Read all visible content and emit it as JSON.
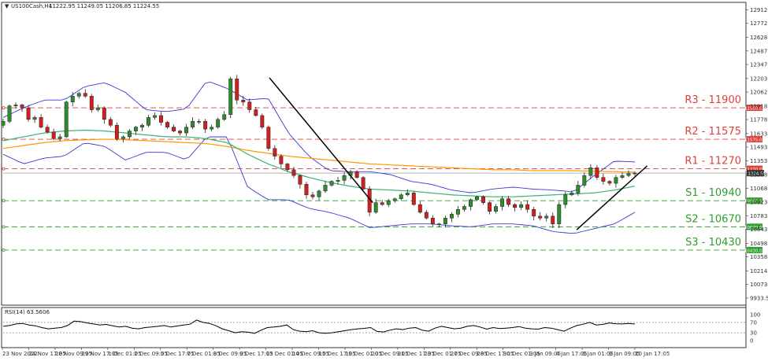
{
  "header": {
    "symbol": "US100Cash,H4",
    "ohlc": "11222.95 11249.05 11206.85 11224.55"
  },
  "rsi_header": "RSI(14) 63.5606",
  "colors": {
    "bull": "#2e8b2e",
    "bear": "#d11f1f",
    "ma_green": "#3cb371",
    "ma_orange": "#ff9900",
    "bollinger": "#3a3ad0",
    "resistance": "#e0403c",
    "support": "#2e9e2e",
    "trendline": "#000000",
    "rsi_line": "#000000"
  },
  "price_axis": {
    "ticks": [
      "12912.80",
      "12772.65",
      "12628.05",
      "12487.90",
      "12347.75",
      "12203.15",
      "12062.80",
      "11918.45",
      "11778.30",
      "11633.70",
      "11493.55",
      "11353.40",
      "11208.75",
      "11068.60",
      "10923.05",
      "10783.85",
      "10643.45",
      "10498.90",
      "10358.55",
      "10214.05",
      "10073.90",
      "9933.55"
    ],
    "current_price": "11224.55"
  },
  "time_axis": {
    "labels": [
      "23 Nov 2022",
      "24 Nov 17:05",
      "28 Nov 09:05",
      "29 Nov 17:05",
      "1 Dec 01:05",
      "2 Dec 09:05",
      "5 Dec 17:05",
      "7 Dec 01:05",
      "8 Dec 09:05",
      "9 Dec 17:05",
      "13 Dec 01:05",
      "14 Dec 09:05",
      "15 Dec 17:05",
      "19 Dec 01:05",
      "20 Dec 09:05",
      "21 Dec 17:05",
      "23 Dec 01:05",
      "27 Dec 09:05",
      "28 Dec 17:05",
      "30 Dec 01:05",
      "3 Jan 09:05",
      "4 Jan 17:05",
      "6 Jan 01:05",
      "9 Jan 09:05",
      "10 Jan 17:05"
    ]
  },
  "levels": [
    {
      "name": "R3",
      "value": 11900,
      "label": "R3 - 11900",
      "tag": "11900.00",
      "kind": "resistance"
    },
    {
      "name": "R2",
      "value": 11575,
      "label": "R2 - 11575",
      "tag": "11575.00",
      "kind": "resistance"
    },
    {
      "name": "R1",
      "value": 11270,
      "label": "R1 - 11270",
      "tag": "11270.00",
      "kind": "resistance"
    },
    {
      "name": "S1",
      "value": 10940,
      "label": "S1 - 10940",
      "tag": "10940.00",
      "kind": "support"
    },
    {
      "name": "S2",
      "value": 10670,
      "label": "S2 - 10670",
      "tag": "10670.00",
      "kind": "support"
    },
    {
      "name": "S3",
      "value": 10430,
      "label": "S3 - 10430",
      "tag": "10430.00",
      "kind": "support"
    }
  ],
  "rsi_axis": {
    "ticks": [
      "100",
      "70",
      "30",
      "0"
    ],
    "levels": [
      70,
      30
    ]
  },
  "chart_data": {
    "type": "candlestick",
    "title": "US100Cash,H4",
    "timeframe": "H4",
    "ylim": [
      9860,
      12990
    ],
    "rsi_ylim": [
      0,
      100
    ],
    "x_labels": [
      "23 Nov 2022",
      "24 Nov 17:05",
      "28 Nov 09:05",
      "29 Nov 17:05",
      "1 Dec 01:05",
      "2 Dec 09:05",
      "5 Dec 17:05",
      "7 Dec 01:05",
      "8 Dec 09:05",
      "9 Dec 17:05",
      "13 Dec 01:05",
      "14 Dec 09:05",
      "15 Dec 17:05",
      "19 Dec 01:05",
      "20 Dec 09:05",
      "21 Dec 17:05",
      "23 Dec 01:05",
      "27 Dec 09:05",
      "28 Dec 17:05",
      "30 Dec 01:05",
      "3 Jan 09:05",
      "4 Jan 17:05",
      "6 Jan 01:05",
      "9 Jan 09:05",
      "10 Jan 17:05"
    ],
    "close_anchors": [
      11760,
      11920,
      11930,
      11900,
      11780,
      11800,
      11700,
      11650,
      11580,
      11600,
      11960,
      12020,
      12050,
      12020,
      11880,
      11900,
      11780,
      11720,
      11580,
      11600,
      11660,
      11700,
      11720,
      11800,
      11820,
      11750,
      11700,
      11660,
      11640,
      11700,
      11760,
      11760,
      11680,
      11700,
      11780,
      11830,
      12200,
      11980,
      11960,
      11880,
      11820,
      11700,
      11480,
      11400,
      11320,
      11260,
      11200,
      11110,
      11000,
      10980,
      11040,
      11100,
      11140,
      11150,
      11200,
      11240,
      11180,
      11060,
      10820,
      10920,
      10900,
      10940,
      10960,
      11000,
      11020,
      10900,
      10820,
      10760,
      10700,
      10700,
      10760,
      10800,
      10850,
      10880,
      10950,
      10980,
      10920,
      10830,
      10880,
      10960,
      10900,
      10870,
      10900,
      10850,
      10780,
      10760,
      10780,
      10700,
      10900,
      11000,
      11020,
      11100,
      11200,
      11280,
      11180,
      11140,
      11120,
      11180,
      11200,
      11220,
      11225
    ],
    "close_anchors_note_ignored": null,
    "ma_green": [
      11560,
      11600,
      11640,
      11660,
      11670,
      11660,
      11640,
      11620,
      11600,
      11600,
      11580,
      11540,
      11420,
      11320,
      11240,
      11180,
      11130,
      11090,
      11060,
      11050,
      11040,
      11020,
      11000,
      10990,
      10980,
      10980,
      10990,
      11000,
      11010,
      11020,
      11050,
      11090
    ],
    "ma_orange": [
      11480,
      11510,
      11540,
      11560,
      11570,
      11575,
      11570,
      11560,
      11550,
      11540,
      11530,
      11500,
      11460,
      11430,
      11400,
      11380,
      11360,
      11340,
      11320,
      11310,
      11300,
      11290,
      11280,
      11270,
      11260,
      11260,
      11250,
      11250,
      11250,
      11245,
      11240,
      11235
    ],
    "bb_upper": [
      11800,
      11900,
      11980,
      11980,
      12120,
      12160,
      12060,
      11880,
      11860,
      11890,
      12180,
      12100,
      11980,
      12000,
      11640,
      11400,
      11250,
      11240,
      11240,
      11210,
      11140,
      11110,
      11050,
      11020,
      11060,
      11080,
      11060,
      11050,
      11030,
      11200,
      11350,
      11340
    ],
    "bb_lower": [
      11420,
      11320,
      11380,
      11400,
      11540,
      11500,
      11360,
      11440,
      11440,
      11360,
      11600,
      11600,
      11080,
      10950,
      10950,
      10860,
      10820,
      10760,
      10660,
      10680,
      10700,
      10700,
      10680,
      10670,
      10700,
      10700,
      10680,
      10620,
      10600,
      10650,
      10700,
      10820
    ],
    "rsi": [
      55,
      58,
      64,
      66,
      60,
      57,
      50,
      45,
      48,
      50,
      58,
      75,
      73,
      68,
      64,
      60,
      62,
      57,
      52,
      55,
      48,
      45,
      50,
      52,
      55,
      58,
      52,
      56,
      60,
      63,
      79,
      70,
      66,
      57,
      45,
      38,
      30,
      34,
      32,
      28,
      40,
      50,
      52,
      55,
      60,
      42,
      36,
      34,
      38,
      30,
      28,
      30,
      34,
      38,
      42,
      45,
      47,
      50,
      35,
      33,
      40,
      45,
      42,
      48,
      50,
      40,
      36,
      48,
      55,
      50,
      45,
      48,
      55,
      58,
      52,
      44,
      50,
      46,
      48,
      50,
      54,
      48,
      45,
      44,
      50,
      48,
      42,
      36,
      48,
      58,
      63,
      70,
      60,
      62,
      68,
      65,
      64,
      66,
      63.56
    ],
    "trendlines": [
      {
        "from": {
          "date": "12 Dec 17:05",
          "price": 12210
        },
        "to": {
          "date": "20 Dec 01:05",
          "price": 10920
        }
      },
      {
        "from": {
          "date": "6 Jan 01:05",
          "price": 10640
        },
        "to": {
          "date": "11 Jan 01:05",
          "price": 11300
        }
      }
    ]
  }
}
